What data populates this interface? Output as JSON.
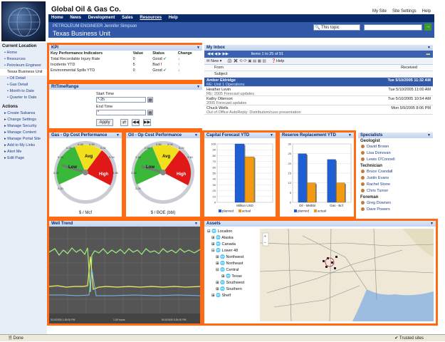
{
  "header": {
    "company": "Global Oil & Gas Co.",
    "top_links": [
      "My Site",
      "Site Settings",
      "Help"
    ],
    "nav": [
      "Home",
      "News",
      "Development",
      "Sales",
      "Resources",
      "Help"
    ],
    "role": "PETROLEUM ENGINEER Jennifer Simpson",
    "title": "Texas Business Unit",
    "search_scope": "This topic",
    "go": "→"
  },
  "sidebar": {
    "current_location": "Current Location",
    "loc_items": [
      "Home",
      "Resources",
      "Petroleum Engineer",
      "Texas Business Unit"
    ],
    "sub_items": [
      "Oil Detail",
      "Gas Detail",
      "Month to Date",
      "Quarter to Date"
    ],
    "actions_label": "Actions",
    "actions": [
      "Create Subarea",
      "Change Settings",
      "Manage Security",
      "Manage Content",
      "Manage Portal Site",
      "Add to My Links",
      "Alert Me",
      "Edit Page"
    ]
  },
  "kpi": {
    "title": "KPI",
    "headers": [
      "Key Performance Indicators",
      "Value",
      "Status",
      "Change"
    ],
    "rows": [
      {
        "name": "Total Recordable Injury Rate",
        "value": "0",
        "status": "Good",
        "status_color": "#2a9a2a",
        "change": "↓",
        "change_color": "#1a3e8a"
      },
      {
        "name": "Incidents YTD",
        "value": "5",
        "status": "Bad",
        "status_color": "#d01010",
        "change": "↑",
        "change_color": "#d01010"
      },
      {
        "name": "Environmental Spills YTD",
        "value": "0",
        "status": "Good",
        "status_color": "#2a9a2a",
        "change": "↓",
        "change_color": "#1a3e8a"
      }
    ]
  },
  "timerange": {
    "title": "RtTimeRange",
    "start_label": "Start Time",
    "start_value": "*-2h",
    "end_label": "End Time",
    "end_value": "*",
    "apply": "Apply"
  },
  "inbox": {
    "title": "My Inbox",
    "toolbar_items": "Items 1 to 25 of 91",
    "new": "New",
    "help": "Help",
    "from": "From",
    "subject": "Subject",
    "received": "Received",
    "messages": [
      {
        "from": "Amber Eldridge",
        "subject": "RE: Unit 1 Operations",
        "date": "Tue 5/10/2005 11:32 AM",
        "selected": true
      },
      {
        "from": "Heather Levin",
        "subject": "RE: 2005 Forecast updates",
        "date": "Tue 5/10/2005 11:00 AM",
        "selected": false
      },
      {
        "from": "Kathy Otterson",
        "subject": "2005 Forecast updates",
        "date": "Tue 5/10/2005 10:54 AM",
        "selected": false
      },
      {
        "from": "Chuck Wells",
        "subject": "Out of Office AutoReply: Distribution/cuss presentation",
        "date": "Mon 5/9/2005 8:06 PM",
        "selected": false
      }
    ]
  },
  "gas_gauge": {
    "title": "Gas - Op Cost Performance",
    "unit": "$ / Mcf",
    "ticks": [
      "0.24",
      "0.26",
      "0.28",
      "0.30",
      "0.32",
      "0.34",
      "0.36",
      "0.22",
      "0.20"
    ],
    "zones": [
      "Low",
      "Avg",
      "High"
    ]
  },
  "oil_gauge": {
    "title": "Oil - Op Cost Performance",
    "unit": "$ / BOE (bbl)",
    "ticks": [
      "2.40",
      "2.60",
      "2.80",
      "3.00",
      "3.20",
      "3.40",
      "2.20",
      "2.00"
    ],
    "zones": [
      "Low",
      "Avg",
      "High"
    ]
  },
  "capital": {
    "title": "Capital Forecast YTD"
  },
  "reserve": {
    "title": "Reserve Replacement YTD"
  },
  "chart_data": [
    {
      "type": "bar",
      "title": "Capital Forecast YTD",
      "categories": [
        "Million USD"
      ],
      "series": [
        {
          "name": "planned",
          "values": [
            100
          ]
        },
        {
          "name": "actual",
          "values": [
            78
          ]
        }
      ],
      "ylim": [
        0,
        100
      ],
      "yticks": [
        "100",
        "90",
        "80",
        "70",
        "60",
        "50",
        "40",
        "30",
        "20",
        "10",
        "0"
      ],
      "legend": [
        "planned",
        "actual"
      ]
    },
    {
      "type": "bar",
      "title": "Reserve Replacement YTD",
      "categories": [
        "Oil - MMbbl",
        "Gas - Bcf"
      ],
      "series": [
        {
          "name": "planned",
          "values": [
            25,
            22
          ]
        },
        {
          "name": "actual",
          "values": [
            10,
            10
          ]
        }
      ],
      "ylim": [
        0,
        30
      ],
      "yticks": [
        "30",
        "25",
        "20",
        "15",
        "10",
        "5",
        "0"
      ],
      "legend": [
        "planned",
        "actual"
      ]
    }
  ],
  "specialists": {
    "title": "Specialists",
    "groups": [
      {
        "label": "Geologist",
        "people": [
          "David Brown",
          "Lisa Donovan",
          "Lewis O'Connell"
        ]
      },
      {
        "label": "Technician",
        "people": [
          "Bruce Crandall",
          "Justin Evans",
          "Rachel Stone",
          "Chris Turner"
        ]
      },
      {
        "label": "Foreman",
        "people": [
          "Greg Downen",
          "Dave Powers"
        ]
      }
    ]
  },
  "well": {
    "title": "Well Trend",
    "x_left": "5/10/2005 1:26:00 PM",
    "x_mid": "1.00 hours",
    "x_right": "5/10/2005 3:26:00 PM"
  },
  "assets": {
    "title": "Assets",
    "tree": [
      "Location",
      "Alaska",
      "Canada",
      "Lower 48",
      "Northwest",
      "Northeast",
      "Central",
      "Texas",
      "Southwest",
      "Southern",
      "Shelf"
    ]
  },
  "status": {
    "left": "Done",
    "right": "Trusted sites"
  }
}
